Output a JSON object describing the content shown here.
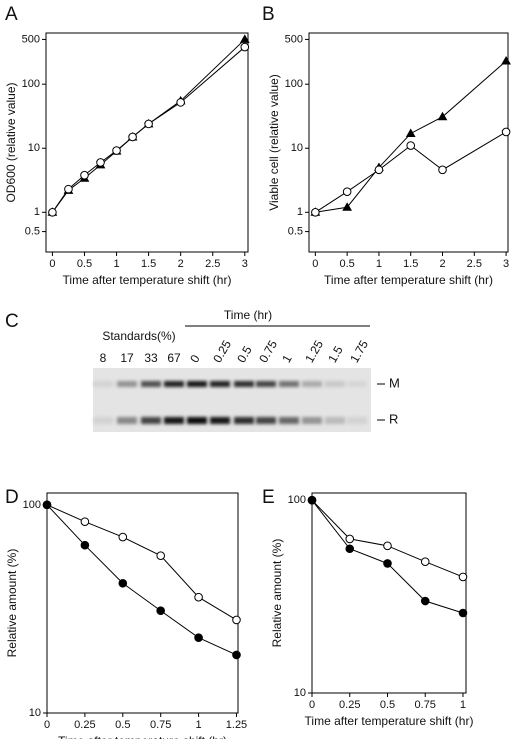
{
  "chart_data": [
    {
      "type": "line",
      "label": "A",
      "xlabel": "Time after temperature shift (hr)",
      "ylabel": "OD600 (relative value)",
      "yscale": "log",
      "xlim": [
        -0.1,
        3.05
      ],
      "ylim": [
        0.24,
        630
      ],
      "xticks": [
        0,
        0.5,
        1,
        1.5,
        2,
        2.5,
        3
      ],
      "yticks": [
        0.5,
        1,
        10,
        100,
        500
      ],
      "x": [
        0,
        0.25,
        0.5,
        0.75,
        1,
        1.25,
        1.5,
        2,
        3
      ],
      "series": [
        {
          "marker": "triangle",
          "fill": "#000000",
          "color": "#000000",
          "values": [
            1,
            2.2,
            3.4,
            5.5,
            9,
            15,
            24,
            55,
            500
          ]
        },
        {
          "marker": "circle",
          "fill": "#ffffff",
          "color": "#000000",
          "values": [
            1,
            2.3,
            3.8,
            6,
            9.2,
            15,
            24,
            52,
            380
          ]
        }
      ]
    },
    {
      "type": "line",
      "label": "B",
      "xlabel": "Time after temperature shift (hr)",
      "ylabel": "Viable cell (relative value)",
      "yscale": "log",
      "xlim": [
        -0.1,
        3.03
      ],
      "ylim": [
        0.24,
        630
      ],
      "xticks": [
        0,
        0.5,
        1,
        1.5,
        2,
        2.5,
        3
      ],
      "yticks": [
        0.5,
        1,
        10,
        100,
        500
      ],
      "x": [
        0,
        0.5,
        1,
        1.5,
        2,
        3
      ],
      "series": [
        {
          "marker": "triangle",
          "fill": "#000000",
          "color": "#000000",
          "values": [
            1,
            1.2,
            5,
            17,
            31,
            230
          ]
        },
        {
          "marker": "circle",
          "fill": "#ffffff",
          "color": "#000000",
          "values": [
            1,
            2.1,
            4.6,
            11,
            4.6,
            18
          ]
        }
      ]
    },
    {
      "type": "line",
      "label": "D",
      "xlabel": "Time after temperature shift (hr)",
      "ylabel": "Relative amount (%)",
      "yscale": "log",
      "xlim": [
        0,
        1.26
      ],
      "ylim": [
        10,
        114
      ],
      "xticks": [
        0,
        0.25,
        0.5,
        0.75,
        1,
        1.25
      ],
      "yticks": [
        10,
        100
      ],
      "x": [
        0,
        0.25,
        0.5,
        0.75,
        1,
        1.25
      ],
      "series": [
        {
          "marker": "circle",
          "fill": "#ffffff",
          "color": "#000000",
          "values": [
            100,
            83,
            70,
            57,
            36,
            28
          ]
        },
        {
          "marker": "circle",
          "fill": "#000000",
          "color": "#000000",
          "values": [
            100,
            64,
            42,
            31,
            23,
            19
          ]
        }
      ]
    },
    {
      "type": "line",
      "label": "E",
      "xlabel": "Time after temperature shift (hr)",
      "ylabel": "Relative amount (%)",
      "yscale": "log",
      "xlim": [
        0,
        1.02
      ],
      "ylim": [
        10,
        109
      ],
      "xticks": [
        0,
        0.25,
        0.5,
        0.75,
        1
      ],
      "yticks": [
        10,
        100
      ],
      "x": [
        0,
        0.25,
        0.5,
        0.75,
        1
      ],
      "series": [
        {
          "marker": "circle",
          "fill": "#ffffff",
          "color": "#000000",
          "values": [
            100,
            63,
            58,
            48,
            40
          ]
        },
        {
          "marker": "circle",
          "fill": "#000000",
          "color": "#000000",
          "values": [
            100,
            56,
            47,
            30,
            26
          ]
        }
      ]
    }
  ],
  "gel": {
    "label": "C",
    "time_title": "Time (hr)",
    "standards_title": "Standards(%)",
    "standards": [
      "8",
      "17",
      "33",
      "67"
    ],
    "times": [
      "0",
      "0.25",
      "0.5",
      "0.75",
      "1",
      "1.25",
      "1.5",
      "1.75"
    ],
    "bands": [
      "M",
      "R"
    ]
  }
}
